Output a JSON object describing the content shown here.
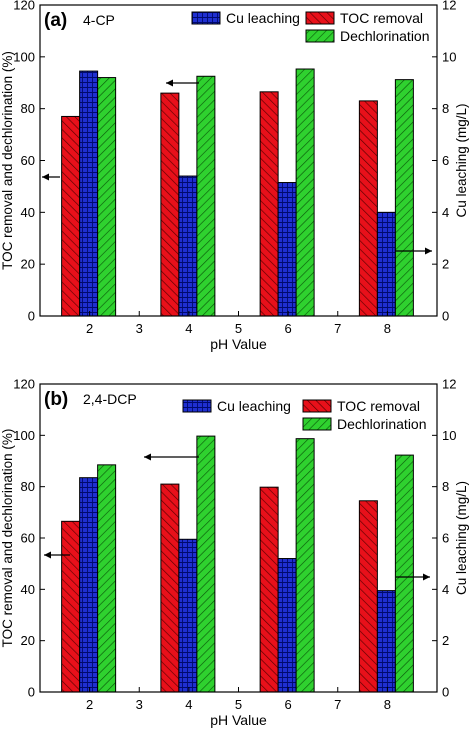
{
  "legend_order": [
    "cu",
    "toc",
    "dechl"
  ],
  "colors": {
    "cu": "#1f2fd1",
    "toc": "#e8101a",
    "dechl": "#2fd12f",
    "axis": "#000000"
  },
  "chart_data": [
    {
      "type": "bar",
      "panel_label": "(a)",
      "compound": "4-CP",
      "x": [
        2,
        4,
        6,
        8
      ],
      "xlim": [
        1,
        9
      ],
      "xticks": [
        2,
        3,
        4,
        5,
        6,
        7,
        8
      ],
      "xlabel": "pH Value",
      "ylabel": "TOC removal and dechlorination (%)",
      "ylim": [
        0,
        120
      ],
      "yticks": [
        0,
        20,
        40,
        60,
        80,
        100,
        120
      ],
      "y2label": "Cu leaching (mg/L)",
      "y2lim": [
        0,
        12
      ],
      "y2ticks": [
        0,
        2,
        4,
        6,
        8,
        10,
        12
      ],
      "series": [
        {
          "key": "toc",
          "name": "TOC removal",
          "axis": "left",
          "values": [
            77,
            86,
            86.5,
            83
          ]
        },
        {
          "key": "cu",
          "name": "Cu leaching",
          "axis": "right",
          "values": [
            9.45,
            5.4,
            5.15,
            4
          ]
        },
        {
          "key": "dechl",
          "name": "Dechlorination",
          "axis": "left",
          "values": [
            92,
            92.5,
            95.3,
            91.2
          ]
        }
      ]
    },
    {
      "type": "bar",
      "panel_label": "(b)",
      "compound": "2,4-DCP",
      "x": [
        2,
        4,
        6,
        8
      ],
      "xlim": [
        1,
        9
      ],
      "xticks": [
        2,
        3,
        4,
        5,
        6,
        7,
        8
      ],
      "xlabel": "pH Value",
      "ylabel": "TOC removal and dechlorination (%)",
      "ylim": [
        0,
        120
      ],
      "yticks": [
        0,
        20,
        40,
        60,
        80,
        100,
        120
      ],
      "y2label": "Cu leaching (mg/L)",
      "y2lim": [
        0,
        12
      ],
      "y2ticks": [
        0,
        2,
        4,
        6,
        8,
        10,
        12
      ],
      "series": [
        {
          "key": "toc",
          "name": "TOC removal",
          "axis": "left",
          "values": [
            66.5,
            81,
            79.8,
            74.5
          ]
        },
        {
          "key": "cu",
          "name": "Cu leaching",
          "axis": "right",
          "values": [
            8.35,
            5.95,
            5.2,
            3.95
          ]
        },
        {
          "key": "dechl",
          "name": "Dechlorination",
          "axis": "left",
          "values": [
            88.5,
            99.7,
            98.7,
            92.3
          ]
        }
      ]
    }
  ]
}
